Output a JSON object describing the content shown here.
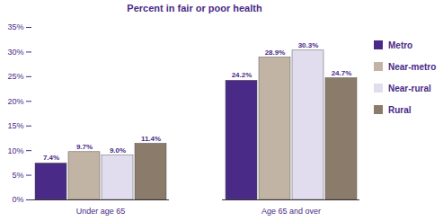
{
  "chart_data": {
    "type": "bar",
    "title": "Percent in fair or poor health",
    "categories": [
      "Under age 65",
      "Age 65 and over"
    ],
    "series": [
      {
        "name": "Metro",
        "color": "#4a2a87",
        "values": [
          7.4,
          24.2
        ],
        "value_labels": [
          "7.4%",
          "24.2%"
        ]
      },
      {
        "name": "Near-metro",
        "color": "#c2b4a4",
        "values": [
          9.7,
          28.9
        ],
        "value_labels": [
          "9.7%",
          "28.9%"
        ]
      },
      {
        "name": "Near-rural",
        "color": "#e2ddee",
        "values": [
          9.0,
          30.3
        ],
        "value_labels": [
          "9.0%",
          "30.3%"
        ]
      },
      {
        "name": "Rural",
        "color": "#8b7b6b",
        "values": [
          11.4,
          24.7
        ],
        "value_labels": [
          "11.4%",
          "24.7%"
        ]
      }
    ],
    "ylim": [
      0,
      35
    ],
    "yticks": [
      {
        "value": 0,
        "label": "0%"
      },
      {
        "value": 5,
        "label": "5%"
      },
      {
        "value": 10,
        "label": "10%"
      },
      {
        "value": 15,
        "label": "15%"
      },
      {
        "value": 20,
        "label": "20%"
      },
      {
        "value": 25,
        "label": "25%"
      },
      {
        "value": 30,
        "label": "30%"
      },
      {
        "value": 35,
        "label": "35%"
      }
    ],
    "data_labels": true,
    "legend": "right",
    "grid": false
  }
}
